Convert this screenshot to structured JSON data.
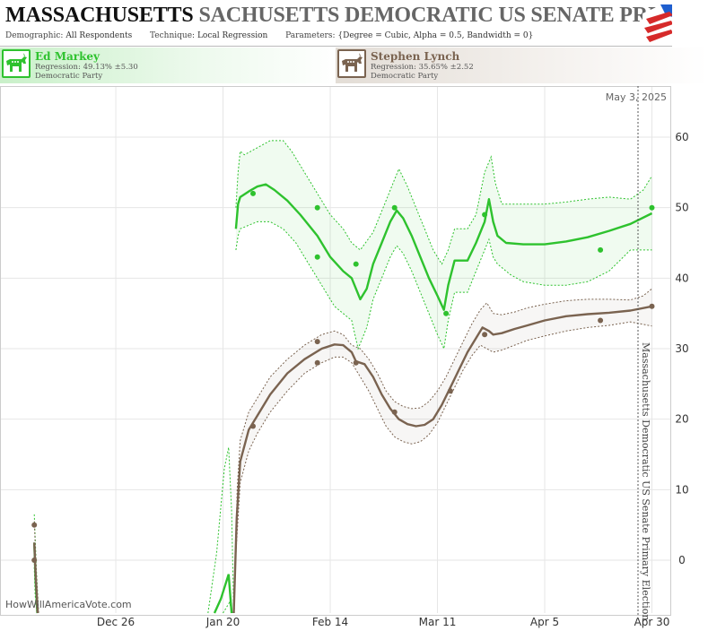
{
  "header": {
    "title_main": "MASSACHUSETTS",
    "title_rest": "SACHUSETTS DEMOCRATIC US SENATE PRIM",
    "params": {
      "demographic_label": "Demographic:",
      "demographic_value": "All Respondents",
      "technique_label": "Technique:",
      "technique_value": "Local Regression",
      "parameters_label": "Parameters:",
      "parameters_value": "{Degree = Cubic, Alpha = 0.5, Bandwidth = 0}"
    }
  },
  "candidates": [
    {
      "name": "Ed Markey",
      "regression": "Regression: 49.13% ±5.30",
      "party": "Democratic Party",
      "color": "#2ec22e",
      "icon": "donkey-icon"
    },
    {
      "name": "Stephen Lynch",
      "regression": "Regression: 35.65% ±2.52",
      "party": "Democratic Party",
      "color": "#7a6350",
      "icon": "donkey-icon"
    }
  ],
  "chart_data": {
    "type": "line",
    "date_label": "May 3, 2025",
    "side_label": "Massachusetts Democratic US Senate Primary Election",
    "watermark": "HowWillAmericaVote.com",
    "x_tick_labels": [
      "Dec 26",
      "Jan 20",
      "Feb 14",
      "Mar 11",
      "Apr 5",
      "Apr 30"
    ],
    "x_tick_days": [
      0,
      25,
      50,
      75,
      100,
      125
    ],
    "xlim": [
      -27,
      129.5
    ],
    "ylim": [
      -7.5,
      67.5
    ],
    "y_ticks": [
      0,
      10,
      20,
      30,
      40,
      50,
      60
    ],
    "series": [
      {
        "name": "Ed Markey",
        "color": "#2ec22e",
        "band_fill": "rgba(46,194,46,0.07)",
        "points": [
          [
            32,
            52
          ],
          [
            47,
            50
          ],
          [
            47,
            43
          ],
          [
            56,
            42
          ],
          [
            65,
            50
          ],
          [
            77,
            35
          ],
          [
            86,
            49
          ],
          [
            113,
            44
          ],
          [
            125,
            50
          ]
        ],
        "fit": [
          [
            28,
            47
          ],
          [
            28.5,
            50.5
          ],
          [
            29,
            51.5
          ],
          [
            31,
            52.3
          ],
          [
            33,
            53
          ],
          [
            35,
            53.3
          ],
          [
            37,
            52.5
          ],
          [
            40,
            51
          ],
          [
            43,
            49
          ],
          [
            47,
            46
          ],
          [
            50,
            43
          ],
          [
            53,
            41
          ],
          [
            55,
            40
          ],
          [
            57,
            37
          ],
          [
            58.5,
            38.5
          ],
          [
            60,
            42
          ],
          [
            62,
            45
          ],
          [
            64,
            48
          ],
          [
            65.5,
            49.6
          ],
          [
            67,
            48.5
          ],
          [
            69,
            46
          ],
          [
            71,
            43
          ],
          [
            73,
            40
          ],
          [
            75,
            37.5
          ],
          [
            76.5,
            35.5
          ],
          [
            77.5,
            39
          ],
          [
            79,
            42.5
          ],
          [
            82,
            42.5
          ],
          [
            84,
            45
          ],
          [
            86,
            48
          ],
          [
            87,
            51.2
          ],
          [
            88,
            48
          ],
          [
            89,
            46
          ],
          [
            91,
            45
          ],
          [
            95,
            44.8
          ],
          [
            100,
            44.8
          ],
          [
            105,
            45.2
          ],
          [
            110,
            45.8
          ],
          [
            115,
            46.7
          ],
          [
            120,
            47.7
          ],
          [
            125,
            49.2
          ]
        ],
        "upper": [
          [
            28,
            50
          ],
          [
            28.5,
            55
          ],
          [
            29,
            58
          ],
          [
            30,
            57.5
          ],
          [
            33,
            58.5
          ],
          [
            36,
            59.5
          ],
          [
            39,
            59.5
          ],
          [
            41,
            58
          ],
          [
            44,
            55
          ],
          [
            47,
            52
          ],
          [
            50,
            49
          ],
          [
            53,
            47
          ],
          [
            55,
            45
          ],
          [
            57,
            44
          ],
          [
            60,
            46.5
          ],
          [
            63,
            51
          ],
          [
            65,
            54
          ],
          [
            66,
            55.5
          ],
          [
            68,
            53
          ],
          [
            70,
            50
          ],
          [
            72,
            47
          ],
          [
            74,
            44
          ],
          [
            76,
            42
          ],
          [
            77.5,
            44
          ],
          [
            79,
            47
          ],
          [
            82,
            47
          ],
          [
            84,
            49
          ],
          [
            86,
            55
          ],
          [
            87.5,
            57.2
          ],
          [
            88.5,
            53.5
          ],
          [
            90,
            50.5
          ],
          [
            93,
            50.5
          ],
          [
            100,
            50.5
          ],
          [
            105,
            50.8
          ],
          [
            110,
            51.2
          ],
          [
            115,
            51.5
          ],
          [
            120,
            51.2
          ],
          [
            123,
            52.5
          ],
          [
            125,
            54.5
          ]
        ],
        "lower": [
          [
            28,
            44
          ],
          [
            28.5,
            46
          ],
          [
            29,
            47
          ],
          [
            31,
            47.5
          ],
          [
            33,
            48
          ],
          [
            36,
            48
          ],
          [
            39,
            47
          ],
          [
            42,
            45
          ],
          [
            45,
            42
          ],
          [
            48,
            39
          ],
          [
            51,
            36
          ],
          [
            53,
            35
          ],
          [
            55,
            34
          ],
          [
            56.5,
            30
          ],
          [
            58.5,
            33
          ],
          [
            60,
            37
          ],
          [
            62,
            40
          ],
          [
            64,
            43
          ],
          [
            65.5,
            44.6
          ],
          [
            67,
            43.5
          ],
          [
            69,
            41
          ],
          [
            71,
            38
          ],
          [
            73,
            35
          ],
          [
            75,
            32
          ],
          [
            76.5,
            30
          ],
          [
            77.5,
            34
          ],
          [
            79,
            38
          ],
          [
            82,
            38
          ],
          [
            84,
            41
          ],
          [
            86,
            44
          ],
          [
            87,
            45.5
          ],
          [
            88,
            43
          ],
          [
            89,
            42
          ],
          [
            92,
            40.5
          ],
          [
            95,
            39.5
          ],
          [
            100,
            39
          ],
          [
            105,
            39
          ],
          [
            110,
            39.5
          ],
          [
            115,
            41
          ],
          [
            120,
            44
          ],
          [
            125,
            44
          ]
        ],
        "early_fit": [
          [
            -19,
            2.5
          ],
          [
            -18.7,
            -3
          ],
          [
            -18.3,
            -7.5
          ]
        ],
        "early_upper": [
          [
            -19,
            6.5
          ],
          [
            -18.5,
            -1.5
          ],
          [
            -18,
            -7.5
          ]
        ],
        "early_lower": [
          [
            -19,
            -1
          ],
          [
            -18.8,
            -5
          ],
          [
            -18.4,
            -7.5
          ]
        ],
        "mid_fit": [
          [
            23,
            -7.5
          ],
          [
            24.5,
            -5.5
          ],
          [
            26.3,
            -2
          ],
          [
            27,
            -7.5
          ]
        ],
        "mid_upper": [
          [
            21.5,
            -7.5
          ],
          [
            23.5,
            1
          ],
          [
            25.3,
            13
          ],
          [
            26.3,
            16
          ],
          [
            27,
            7
          ],
          [
            27.5,
            -7.5
          ]
        ],
        "mid_lower": [
          [
            25,
            -7.5
          ],
          [
            26.5,
            -6
          ],
          [
            27.2,
            -7.5
          ]
        ]
      },
      {
        "name": "Stephen Lynch",
        "color": "#7a6350",
        "band_fill": "rgba(122,99,80,0.06)",
        "points": [
          [
            -19,
            5
          ],
          [
            -19,
            0
          ],
          [
            32,
            19
          ],
          [
            47,
            31
          ],
          [
            47,
            28
          ],
          [
            56,
            28
          ],
          [
            65,
            21
          ],
          [
            78,
            24
          ],
          [
            86,
            32
          ],
          [
            113,
            34
          ],
          [
            125,
            36
          ]
        ],
        "fit": [
          [
            27.5,
            -7.5
          ],
          [
            28.2,
            6
          ],
          [
            29,
            14
          ],
          [
            31,
            18.5
          ],
          [
            33,
            20.5
          ],
          [
            36,
            23.5
          ],
          [
            40,
            26.5
          ],
          [
            44,
            28.5
          ],
          [
            48,
            30
          ],
          [
            51,
            30.6
          ],
          [
            53,
            30.5
          ],
          [
            55,
            29.5
          ],
          [
            56,
            28.2
          ],
          [
            58,
            27.8
          ],
          [
            60,
            26
          ],
          [
            62,
            23.5
          ],
          [
            64,
            21.5
          ],
          [
            66,
            20
          ],
          [
            68,
            19.3
          ],
          [
            70,
            19
          ],
          [
            72,
            19.2
          ],
          [
            74,
            20
          ],
          [
            76,
            22
          ],
          [
            78,
            24.5
          ],
          [
            80,
            27
          ],
          [
            82,
            29.5
          ],
          [
            84,
            31.5
          ],
          [
            85.5,
            33
          ],
          [
            87,
            32.5
          ],
          [
            88,
            32
          ],
          [
            90,
            32.2
          ],
          [
            93,
            32.8
          ],
          [
            96,
            33.3
          ],
          [
            100,
            34
          ],
          [
            105,
            34.6
          ],
          [
            110,
            34.9
          ],
          [
            115,
            35.1
          ],
          [
            120,
            35.4
          ],
          [
            125,
            36
          ]
        ],
        "upper": [
          [
            27.6,
            -7.5
          ],
          [
            28.3,
            10
          ],
          [
            29,
            17
          ],
          [
            31,
            21
          ],
          [
            33,
            23
          ],
          [
            36,
            26
          ],
          [
            40,
            28.5
          ],
          [
            44,
            30.5
          ],
          [
            48,
            32
          ],
          [
            51,
            32.5
          ],
          [
            53,
            32
          ],
          [
            55,
            30.5
          ],
          [
            57,
            30
          ],
          [
            59,
            28.5
          ],
          [
            61,
            26.5
          ],
          [
            63,
            24
          ],
          [
            65,
            22.5
          ],
          [
            67,
            21.8
          ],
          [
            69,
            21.5
          ],
          [
            71,
            21.6
          ],
          [
            73,
            22.5
          ],
          [
            75,
            24
          ],
          [
            77,
            26
          ],
          [
            79,
            28.5
          ],
          [
            81,
            31
          ],
          [
            83,
            33.5
          ],
          [
            85,
            35.5
          ],
          [
            86.5,
            36.5
          ],
          [
            88,
            35
          ],
          [
            90,
            34.8
          ],
          [
            93,
            35.2
          ],
          [
            96,
            35.8
          ],
          [
            100,
            36.3
          ],
          [
            105,
            36.8
          ],
          [
            110,
            37
          ],
          [
            115,
            37
          ],
          [
            120,
            36.9
          ],
          [
            123,
            37.5
          ],
          [
            125,
            38.5
          ]
        ],
        "lower": [
          [
            27.4,
            -7.5
          ],
          [
            28.1,
            2
          ],
          [
            29,
            11
          ],
          [
            31,
            15.5
          ],
          [
            33,
            18
          ],
          [
            36,
            21
          ],
          [
            40,
            24
          ],
          [
            44,
            26.5
          ],
          [
            48,
            28
          ],
          [
            51,
            28.8
          ],
          [
            53,
            28.8
          ],
          [
            55,
            28
          ],
          [
            57,
            26
          ],
          [
            59,
            24
          ],
          [
            61,
            21.5
          ],
          [
            63,
            19
          ],
          [
            65,
            17.5
          ],
          [
            67,
            16.8
          ],
          [
            69,
            16.5
          ],
          [
            71,
            16.8
          ],
          [
            73,
            17.8
          ],
          [
            75,
            19.5
          ],
          [
            77,
            22
          ],
          [
            79,
            24.5
          ],
          [
            81,
            27
          ],
          [
            83,
            29
          ],
          [
            85,
            30.5
          ],
          [
            86.5,
            30
          ],
          [
            88,
            29.5
          ],
          [
            90,
            29.8
          ],
          [
            93,
            30.5
          ],
          [
            96,
            31.2
          ],
          [
            100,
            31.8
          ],
          [
            105,
            32.5
          ],
          [
            110,
            33
          ],
          [
            115,
            33.3
          ],
          [
            120,
            33.8
          ],
          [
            125,
            33.2
          ]
        ],
        "early_fit": [
          [
            -19,
            2.5
          ],
          [
            -18.6,
            -3
          ],
          [
            -18.2,
            -7.5
          ]
        ],
        "early_upper": [
          [
            -19,
            5.5
          ],
          [
            -18.5,
            -2
          ],
          [
            -18,
            -7.5
          ]
        ],
        "early_lower": [
          [
            -19,
            0
          ],
          [
            -18.7,
            -4
          ],
          [
            -18.4,
            -7.5
          ]
        ]
      }
    ]
  }
}
